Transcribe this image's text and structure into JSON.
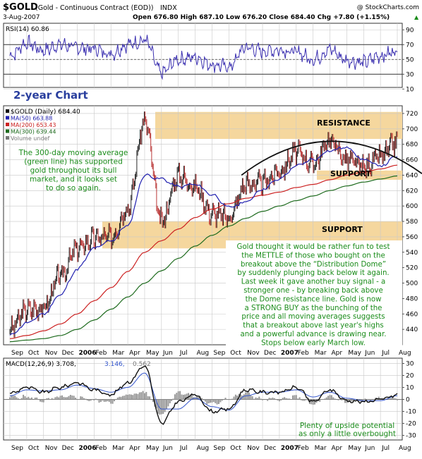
{
  "header": {
    "symbol": "$GOLD",
    "description": "(Gold - Continuous Contract (EOD))",
    "exchange": "INDX",
    "brand": "@ StockCharts.com",
    "date": "3-Aug-2007",
    "quote": "Open 676.80  High 687.10  Low 676.20  Close 684.40  Chg +7.80 (+1.15%)",
    "quote_marker": "▲"
  },
  "colors": {
    "background": "#ffffff",
    "panel_border": "#333333",
    "grid": "#c8c8c8",
    "band": "#f5d79e",
    "price": "#111111",
    "down_bar": "#b22222",
    "ma50": "#2121b0",
    "ma200": "#cc2222",
    "ma300": "#1e6b1e",
    "rsi": "#3a2fb0",
    "macd": "#111111",
    "signal": "#3355cc",
    "histogram": "#9a9a9a",
    "annotation": "#1a8c1a",
    "caption": "#2a3f9e",
    "dome": "#111111"
  },
  "rsi_panel": {
    "label": "RSI(14) 60.86",
    "levels": [
      70,
      30
    ],
    "ticks": [
      "90",
      "70",
      "50",
      "30",
      "10"
    ]
  },
  "price_panel": {
    "caption": "2-year Chart",
    "legend": [
      {
        "id": "price",
        "text": "$GOLD (Daily) 684.40"
      },
      {
        "id": "ma50",
        "text": "MA(50) 663.88"
      },
      {
        "id": "ma200",
        "text": "MA(200) 653.43"
      },
      {
        "id": "ma300",
        "text": "MA(300) 639.44"
      },
      {
        "id": "volume",
        "text": "Volume undef"
      }
    ],
    "resistance_label": "RESISTANCE",
    "support_upper_label": "SUPPORT",
    "support_lower_label": "SUPPORT",
    "green_note": [
      "The 300-day moving average",
      "(green line) has supported",
      "gold throughout its bull",
      "market, and it looks set",
      "to do so again."
    ],
    "white_note": [
      "Gold thought it would be rather fun to test",
      "the METTLE of those who bought on the",
      "breakout above the “Distribution Dome”",
      "by suddenly plunging back below it again.",
      "Last week it gave another buy signal - a",
      "stronger one -  by breaking back above",
      "the Dome resistance line. Gold is now",
      "a STRONG BUY as the bunching of the",
      "price and all moving averages suggests",
      "that a breakout above last year's highs",
      "and a powerful advance is drawing near.",
      "Stops below early March low."
    ]
  },
  "macd_panel": {
    "label_main": "MACD(12,26,9) 3.708,",
    "label_signal": "3.146,",
    "label_hist": "0.562",
    "note": [
      "Plenty of upside potential",
      "as only a little overbought"
    ]
  },
  "x_axis": {
    "labels": [
      "Sep",
      "Oct",
      "Nov",
      "Dec",
      "2006",
      "Feb",
      "Mar",
      "Apr",
      "May",
      "Jun",
      "Jul",
      "Aug",
      "Sep",
      "Oct",
      "Nov",
      "Dec",
      "2007",
      "Feb",
      "Mar",
      "Apr",
      "May",
      "Jun",
      "Jul",
      "Aug"
    ],
    "bold": [
      "2006",
      "2007"
    ]
  },
  "chart_data": [
    {
      "type": "line",
      "title": "RSI(14) 60.86",
      "ylim": [
        15,
        95
      ],
      "y_ticks": [
        90,
        70,
        50,
        30,
        10
      ],
      "reference_lines": [
        70,
        30
      ],
      "months": [
        "Sep",
        "Oct",
        "Nov",
        "Dec",
        "2006",
        "Feb",
        "Mar",
        "Apr",
        "May",
        "Jun",
        "Jul",
        "Aug",
        "Sep",
        "Oct",
        "Nov",
        "Dec",
        "2007",
        "Feb",
        "Mar",
        "Apr",
        "May",
        "Jun",
        "Jul",
        "Aug"
      ],
      "series": [
        {
          "name": "RSI(14)",
          "values": [
            55,
            72,
            62,
            70,
            66,
            64,
            58,
            70,
            76,
            32,
            50,
            53,
            43,
            40,
            66,
            61,
            63,
            60,
            50,
            63,
            49,
            46,
            55,
            61
          ]
        }
      ]
    },
    {
      "type": "line",
      "title": "$GOLD (Daily) 684.40",
      "ylim": [
        420,
        730
      ],
      "y_ticks": [
        720,
        700,
        680,
        660,
        640,
        620,
        600,
        580,
        560,
        540,
        520,
        500,
        480,
        460,
        440
      ],
      "months": [
        "Sep",
        "Oct",
        "Nov",
        "Dec",
        "2006",
        "Feb",
        "Mar",
        "Apr",
        "May",
        "Jun",
        "Jul",
        "Aug",
        "Sep",
        "Oct",
        "Nov",
        "Dec",
        "2007",
        "Feb",
        "Mar",
        "Apr",
        "May",
        "Jun",
        "Jul",
        "Aug"
      ],
      "bands": [
        {
          "label": "RESISTANCE",
          "from": 687,
          "to": 722
        },
        {
          "label": "SUPPORT",
          "from": 545,
          "to": 580
        }
      ],
      "series": [
        {
          "name": "$GOLD (Daily) 684.40",
          "values": [
            440,
            465,
            468,
            510,
            545,
            558,
            560,
            598,
            710,
            580,
            640,
            625,
            590,
            585,
            628,
            630,
            645,
            670,
            655,
            685,
            660,
            650,
            664,
            684
          ]
        },
        {
          "name": "MA(50) 663.88",
          "values": [
            432,
            448,
            460,
            485,
            518,
            545,
            555,
            575,
            640,
            635,
            625,
            628,
            615,
            598,
            605,
            622,
            635,
            652,
            660,
            672,
            676,
            660,
            652,
            664
          ]
        },
        {
          "name": "MA(200) 653.43",
          "values": [
            428,
            432,
            438,
            447,
            460,
            477,
            494,
            515,
            540,
            555,
            570,
            585,
            596,
            603,
            610,
            614,
            618,
            624,
            628,
            634,
            640,
            644,
            648,
            653
          ]
        },
        {
          "name": "MA(300) 639.44",
          "values": [
            424,
            426,
            428,
            432,
            440,
            452,
            466,
            482,
            500,
            516,
            532,
            548,
            562,
            574,
            584,
            593,
            600,
            607,
            613,
            620,
            626,
            631,
            635,
            639
          ]
        }
      ]
    },
    {
      "type": "line",
      "title": "MACD(12,26,9) 3.708, 3.146, 0.562",
      "ylim": [
        -32,
        32
      ],
      "y_ticks": [
        30,
        20,
        10,
        0,
        -10,
        -20,
        -30
      ],
      "months": [
        "Sep",
        "Oct",
        "Nov",
        "Dec",
        "2006",
        "Feb",
        "Mar",
        "Apr",
        "May",
        "Jun",
        "Jul",
        "Aug",
        "Sep",
        "Oct",
        "Nov",
        "Dec",
        "2007",
        "Feb",
        "Mar",
        "Apr",
        "May",
        "Jun",
        "Jul",
        "Aug"
      ],
      "series": [
        {
          "name": "MACD(12,26,9)",
          "values": [
            5,
            10,
            6,
            10,
            14,
            8,
            4,
            14,
            28,
            -20,
            -2,
            4,
            -10,
            -8,
            8,
            6,
            6,
            10,
            -2,
            8,
            -1,
            -2,
            0,
            3.7
          ]
        },
        {
          "name": "Signal",
          "values": [
            3,
            8,
            7,
            8,
            12,
            9,
            6,
            10,
            22,
            -8,
            -8,
            1,
            -6,
            -9,
            3,
            6,
            6,
            8,
            2,
            6,
            1,
            -1,
            -1,
            3.1
          ]
        },
        {
          "name": "Histogram",
          "values": [
            2,
            2,
            -1,
            2,
            2,
            -1,
            -2,
            4,
            6,
            -12,
            6,
            3,
            -4,
            1,
            5,
            0,
            0,
            2,
            -4,
            2,
            -2,
            -1,
            1,
            0.6
          ]
        }
      ]
    }
  ]
}
